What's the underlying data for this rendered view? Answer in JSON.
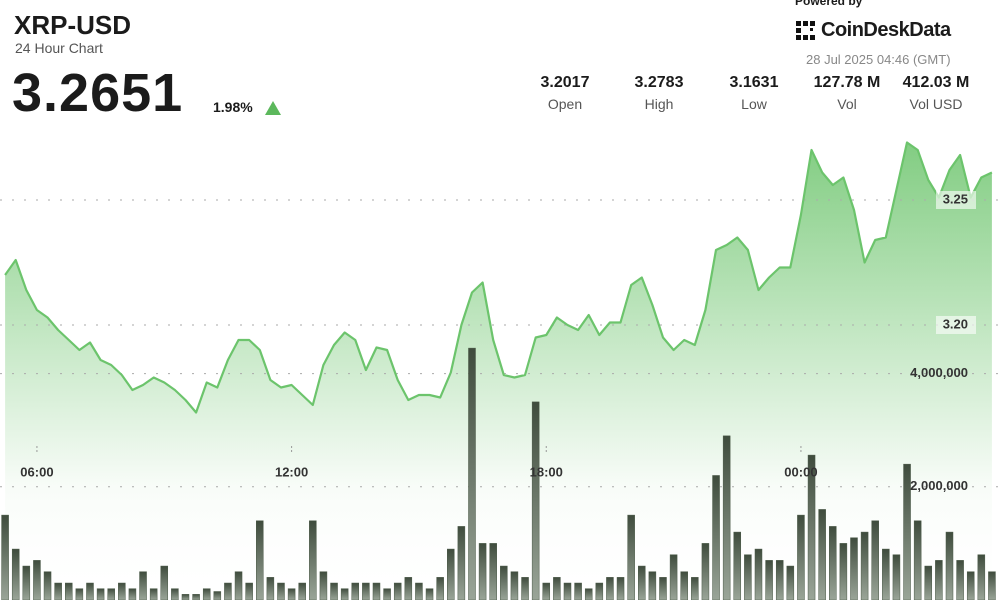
{
  "header": {
    "title": "XRP-USD",
    "subtitle": "24 Hour Chart",
    "price": "3.2651",
    "change": "1.98%",
    "powered_by": "Powered by",
    "brand": "CoinDeskData",
    "timestamp": "28 Jul 2025 04:46 (GMT)",
    "stats": [
      {
        "value": "3.2017",
        "label": "Open"
      },
      {
        "value": "3.2783",
        "label": "High"
      },
      {
        "value": "3.1631",
        "label": "Low"
      },
      {
        "value": "127.78 M",
        "label": "Vol"
      },
      {
        "value": "412.03 M",
        "label": "Vol USD"
      }
    ]
  },
  "chart_data": {
    "type": "line",
    "x": [
      5.25,
      5.5,
      5.75,
      6,
      6.25,
      6.5,
      6.75,
      7,
      7.25,
      7.5,
      7.75,
      8,
      8.25,
      8.5,
      8.75,
      9,
      9.25,
      9.5,
      9.75,
      10,
      10.25,
      10.5,
      10.75,
      11,
      11.25,
      11.5,
      11.75,
      12,
      12.25,
      12.5,
      12.75,
      13,
      13.25,
      13.5,
      13.75,
      14,
      14.25,
      14.5,
      14.75,
      15,
      15.25,
      15.5,
      15.75,
      16,
      16.25,
      16.5,
      16.75,
      17,
      17.25,
      17.5,
      17.75,
      18,
      18.25,
      18.5,
      18.75,
      19,
      19.25,
      19.5,
      19.75,
      20,
      20.25,
      20.5,
      20.75,
      21,
      21.25,
      21.5,
      21.75,
      22,
      22.25,
      22.5,
      22.75,
      23,
      23.25,
      23.5,
      23.75,
      24,
      24.25,
      24.5,
      24.75,
      25,
      25.25,
      25.5,
      25.75,
      26,
      26.25,
      26.5,
      26.75,
      27,
      27.25,
      27.5,
      27.75,
      28,
      28.25,
      28.5
    ],
    "series": [
      {
        "color": "#6cc46c",
        "values": [
          3.22,
          3.226,
          3.214,
          3.206,
          3.203,
          3.198,
          3.194,
          3.19,
          3.193,
          3.186,
          3.184,
          3.18,
          3.174,
          3.176,
          3.179,
          3.177,
          3.174,
          3.17,
          3.165,
          3.177,
          3.175,
          3.186,
          3.194,
          3.194,
          3.19,
          3.178,
          3.175,
          3.176,
          3.172,
          3.168,
          3.184,
          3.192,
          3.197,
          3.194,
          3.182,
          3.191,
          3.19,
          3.178,
          3.17,
          3.172,
          3.172,
          3.171,
          3.181,
          3.2,
          3.213,
          3.217,
          3.194,
          3.18,
          3.179,
          3.18,
          3.195,
          3.196,
          3.203,
          3.2,
          3.198,
          3.204,
          3.196,
          3.201,
          3.201,
          3.216,
          3.219,
          3.208,
          3.195,
          3.19,
          3.194,
          3.192,
          3.206,
          3.23,
          3.232,
          3.235,
          3.23,
          3.214,
          3.219,
          3.223,
          3.223,
          3.244,
          3.27,
          3.261,
          3.256,
          3.259,
          3.246,
          3.225,
          3.234,
          3.235,
          3.254,
          3.273,
          3.27,
          3.258,
          3.251,
          3.262,
          3.268,
          3.251,
          3.259,
          3.261
        ]
      },
      {
        "type": "bar",
        "axis": "y2",
        "color": "#4a5947",
        "values": [
          1500000,
          900000,
          600000,
          700000,
          500000,
          300000,
          300000,
          200000,
          300000,
          200000,
          200000,
          300000,
          200000,
          500000,
          200000,
          600000,
          200000,
          100000,
          100000,
          200000,
          150000,
          300000,
          500000,
          300000,
          1400000,
          400000,
          300000,
          200000,
          300000,
          1400000,
          500000,
          300000,
          200000,
          300000,
          300000,
          300000,
          200000,
          300000,
          400000,
          300000,
          200000,
          400000,
          900000,
          1300000,
          4450000,
          1000000,
          1000000,
          600000,
          500000,
          400000,
          3500000,
          300000,
          400000,
          300000,
          300000,
          200000,
          300000,
          400000,
          400000,
          1500000,
          600000,
          500000,
          400000,
          800000,
          500000,
          400000,
          1000000,
          2200000,
          2900000,
          1200000,
          800000,
          900000,
          700000,
          700000,
          600000,
          1500000,
          2560000,
          1600000,
          1300000,
          1000000,
          1100000,
          1200000,
          1400000,
          900000,
          800000,
          2400000,
          1400000,
          600000,
          700000,
          1200000,
          700000,
          500000,
          800000,
          500000
        ]
      }
    ],
    "xlim": [
      5.13,
      28.69
    ],
    "xticks": [
      {
        "value": 6,
        "label": "06:00"
      },
      {
        "value": 12,
        "label": "12:00"
      },
      {
        "value": 18,
        "label": "18:00"
      },
      {
        "value": 24,
        "label": "00:00"
      }
    ],
    "ylim": [
      3.09,
      3.33
    ],
    "yticks": [
      3.25,
      {
        "value": 3.2,
        "label": "3.20"
      }
    ],
    "y2lim": [
      0,
      10600000
    ],
    "y2ticks": [
      {
        "value": 4000000,
        "label": "4,000,000"
      },
      {
        "value": 2000000,
        "label": "2,000,000"
      }
    ],
    "grid": true
  }
}
